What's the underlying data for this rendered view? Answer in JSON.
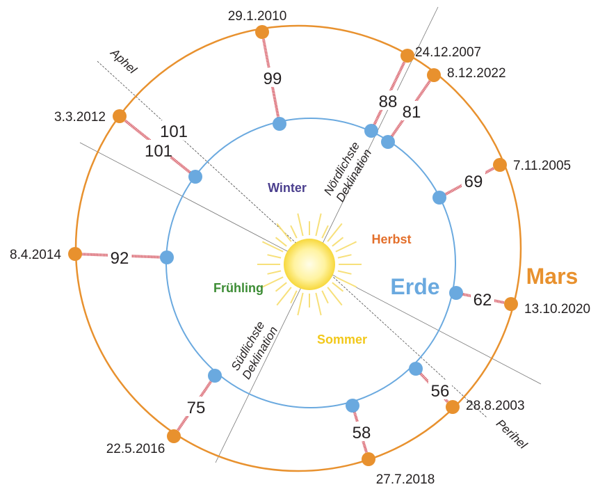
{
  "title_labels": {
    "mars": "Mars",
    "earth": "Erde"
  },
  "seasons": {
    "winter": "Winter",
    "autumn": "Herbst",
    "summer": "Sommer",
    "spring": "Frühling"
  },
  "lines": {
    "aphelion": "Aphel",
    "perihelion": "Perihel",
    "north": [
      "Nördlichste",
      "Deklination"
    ],
    "south": [
      "Südlichste",
      "Deklination"
    ]
  },
  "oppositions": [
    {
      "date": "29.1.2010",
      "distance": 99
    },
    {
      "date": "24.12.2007",
      "distance": 88
    },
    {
      "date": "8.12.2022",
      "distance": 81
    },
    {
      "date": "3.3.2012",
      "distance": 101
    },
    {
      "date": "7.11.2005",
      "distance": 69
    },
    {
      "date": "8.4.2014",
      "distance": 92
    },
    {
      "date": "13.10.2020",
      "distance": 62
    },
    {
      "date": "28.8.2003",
      "distance": 56
    },
    {
      "date": "27.7.2018",
      "distance": 58
    },
    {
      "date": "22.5.2016",
      "distance": 75
    }
  ]
}
